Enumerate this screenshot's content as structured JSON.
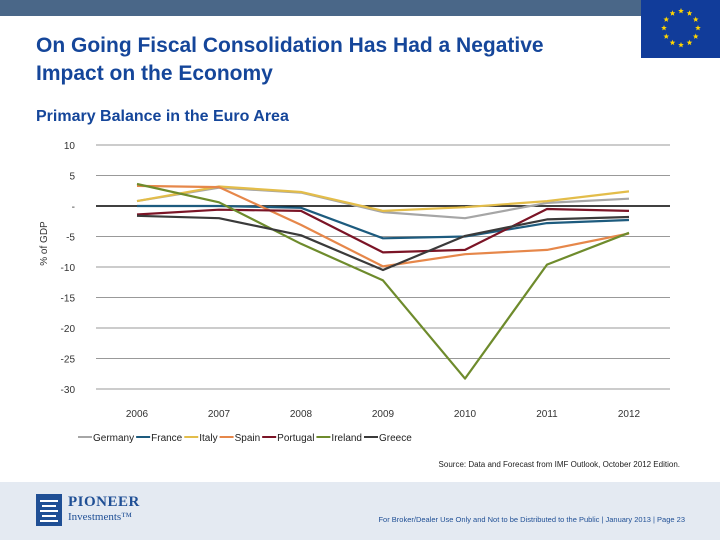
{
  "header": {
    "title_line1": "On Going Fiscal Consolidation Has Had a Negative",
    "title_line2": "Impact on the Economy"
  },
  "chart_data": {
    "type": "line",
    "title": "Primary Balance in the Euro Area",
    "xlabel": "",
    "ylabel": "% of GDP",
    "categories": [
      "2006",
      "2007",
      "2008",
      "2009",
      "2010",
      "2011",
      "2012"
    ],
    "yticks": [
      10,
      5,
      0,
      -5,
      -10,
      -15,
      -20,
      -25,
      -30
    ],
    "ytick_labels": [
      "10",
      "5",
      "-",
      "-5",
      "-10",
      "-15",
      "-20",
      "-25",
      "-30"
    ],
    "ylim": [
      -30,
      10
    ],
    "legend_position": "bottom",
    "series": [
      {
        "name": "Germany",
        "color": "#a6a6a6",
        "values": [
          0.8,
          3.0,
          2.2,
          -1.0,
          -2.0,
          0.5,
          1.2
        ]
      },
      {
        "name": "France",
        "color": "#1d5b7e",
        "values": [
          0.0,
          0.0,
          -0.3,
          -5.3,
          -5.0,
          -2.8,
          -2.3
        ]
      },
      {
        "name": "Italy",
        "color": "#e3bd4a",
        "values": [
          0.8,
          3.2,
          2.3,
          -0.8,
          -0.2,
          0.8,
          2.4
        ]
      },
      {
        "name": "Spain",
        "color": "#e6874a",
        "values": [
          3.3,
          3.1,
          -3.1,
          -9.9,
          -7.9,
          -7.2,
          -4.5
        ]
      },
      {
        "name": "Portugal",
        "color": "#7b1426",
        "values": [
          -1.4,
          -0.6,
          -0.8,
          -7.6,
          -7.2,
          -0.5,
          -0.8
        ]
      },
      {
        "name": "Ireland",
        "color": "#6e8b2c",
        "values": [
          3.6,
          0.6,
          -6.2,
          -12.2,
          -28.3,
          -9.6,
          -4.4
        ]
      },
      {
        "name": "Greece",
        "color": "#3a3a3a",
        "values": [
          -1.6,
          -2.0,
          -4.8,
          -10.5,
          -4.9,
          -2.2,
          -1.8
        ]
      }
    ]
  },
  "source_note": "Source: Data and Forecast from IMF Outlook, October 2012 Edition.",
  "footer": {
    "brand_line1": "PIONEER",
    "brand_line2": "Investments™",
    "disclaimer": "For Broker/Dealer Use Only and Not to be Distributed to the Public | January 2013 | Page 23"
  },
  "colors": {
    "title": "#15469a",
    "topbar": "#4a6788",
    "eu_blue": "#113c9a",
    "eu_star": "#ffd500",
    "footer_bg": "#e4eaf2"
  }
}
